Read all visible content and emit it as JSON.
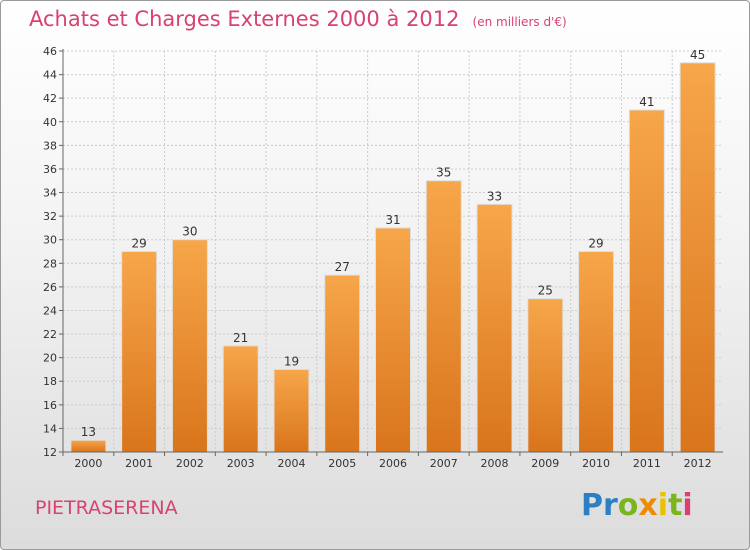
{
  "title": "Achats et Charges Externes 2000 à 2012",
  "unit": "(en milliers d'€)",
  "commune": "PIETRASERENA",
  "logo": {
    "letters": [
      "P",
      "r",
      "o",
      "x",
      "i",
      "t",
      "i"
    ],
    "colors": [
      "#2b7fc2",
      "#2b7fc2",
      "#7ab51d",
      "#f08a00",
      "#e8c100",
      "#7ab51d",
      "#d9416f"
    ]
  },
  "colors": {
    "title": "#d9416f",
    "bar_light": "#f7a64a",
    "bar_dark": "#d9751c",
    "axis": "#666666",
    "grid": "#cccccc"
  },
  "chart_data": {
    "type": "bar",
    "title": "Achats et Charges Externes 2000 à 2012",
    "categories": [
      "2000",
      "2001",
      "2002",
      "2003",
      "2004",
      "2005",
      "2006",
      "2007",
      "2008",
      "2009",
      "2010",
      "2011",
      "2012"
    ],
    "values": [
      13,
      29,
      30,
      21,
      19,
      27,
      31,
      35,
      33,
      25,
      29,
      41,
      45
    ],
    "ylim": [
      12,
      46
    ],
    "yticks": [
      12,
      14,
      16,
      18,
      20,
      22,
      24,
      26,
      28,
      30,
      32,
      34,
      36,
      38,
      40,
      42,
      44,
      46
    ],
    "grid": "horizontal dashed",
    "data_labels": true
  }
}
